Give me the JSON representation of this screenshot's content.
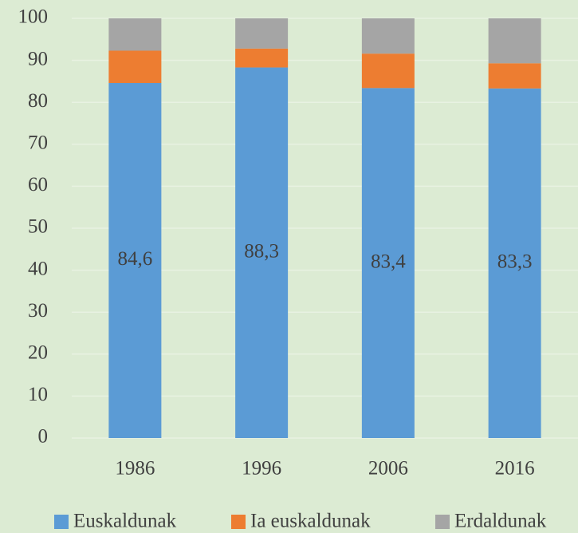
{
  "chart_data": {
    "type": "stacked_bar",
    "categories": [
      "1986",
      "1996",
      "2006",
      "2016"
    ],
    "series": [
      {
        "name": "Euskaldunak",
        "color": "#5b9bd5",
        "values": [
          84.6,
          88.3,
          83.4,
          83.3
        ],
        "value_labels": [
          "84,6",
          "88,3",
          "83,4",
          "83,3"
        ]
      },
      {
        "name": "Ia euskaldunak",
        "color": "#ed7d31",
        "values": [
          7.7,
          4.5,
          8.2,
          6.0
        ]
      },
      {
        "name": "Erdaldunak",
        "color": "#a5a5a5",
        "values": [
          7.7,
          7.2,
          8.4,
          10.7
        ]
      }
    ],
    "ylim": [
      0,
      100
    ],
    "yticks": [
      0,
      10,
      20,
      30,
      40,
      50,
      60,
      70,
      80,
      90,
      100
    ],
    "grid": true,
    "legend": "bottom"
  }
}
